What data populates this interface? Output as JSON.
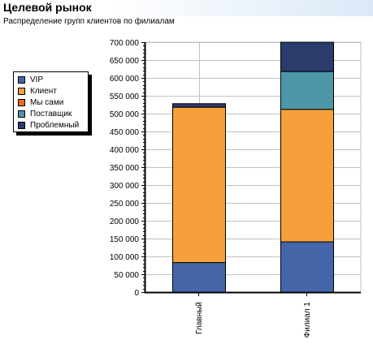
{
  "header": {
    "title": "Целевой рынок",
    "subtitle": "Распределение групп клиентов по филиалам"
  },
  "colors": {
    "background": "#ffffff",
    "header_gradient_end": "#dbe8f7",
    "gridline": "#c0c0c0",
    "axis": "#000000"
  },
  "chart_data": {
    "type": "bar",
    "stacked": true,
    "title": "Целевой рынок",
    "subtitle": "Распределение групп клиентов по филиалам",
    "xlabel": "",
    "ylabel": "",
    "categories": [
      "Главный",
      "Филиал 1"
    ],
    "series": [
      {
        "name": "VIP",
        "color": "#4466a8",
        "values": [
          84000,
          142000
        ]
      },
      {
        "name": "Клиент",
        "color": "#f5a03a",
        "values": [
          435000,
          371000
        ]
      },
      {
        "name": "Мы сами",
        "color": "#ef6a1c",
        "values": [
          0,
          0
        ]
      },
      {
        "name": "Поставщик",
        "color": "#4d96a7",
        "values": [
          0,
          106000
        ]
      },
      {
        "name": "Проблемный",
        "color": "#2a3c6c",
        "values": [
          10000,
          82000
        ]
      }
    ],
    "ylim": [
      0,
      700000
    ],
    "yticks": [
      0,
      50000,
      100000,
      150000,
      200000,
      250000,
      300000,
      350000,
      400000,
      450000,
      500000,
      550000,
      600000,
      650000,
      700000
    ],
    "ytick_labels": [
      "0",
      "50 000",
      "100 000",
      "150 000",
      "200 000",
      "250 000",
      "300 000",
      "350 000",
      "400 000",
      "450 000",
      "500 000",
      "550 000",
      "600 000",
      "650 000",
      "700 000"
    ],
    "grid": true,
    "legend_position": "left"
  }
}
